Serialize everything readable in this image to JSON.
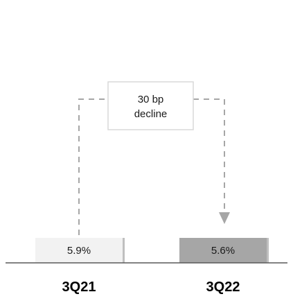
{
  "chart_data": {
    "type": "bar",
    "categories": [
      "3Q21",
      "3Q22"
    ],
    "values": [
      5.9,
      5.6
    ],
    "value_labels": [
      "5.9%",
      "5.6%"
    ],
    "bar_colors": [
      "#f2f2f2",
      "#a6a6a6"
    ],
    "bar_shadow_color": "#bfbfbf",
    "axis_color": "#595959",
    "arrow_color": "#a6a6a6",
    "annotation": {
      "lines": [
        "30 bp",
        "decline"
      ],
      "border_color": "#d9d9d9"
    },
    "title": "",
    "xlabel": "",
    "ylabel": ""
  }
}
